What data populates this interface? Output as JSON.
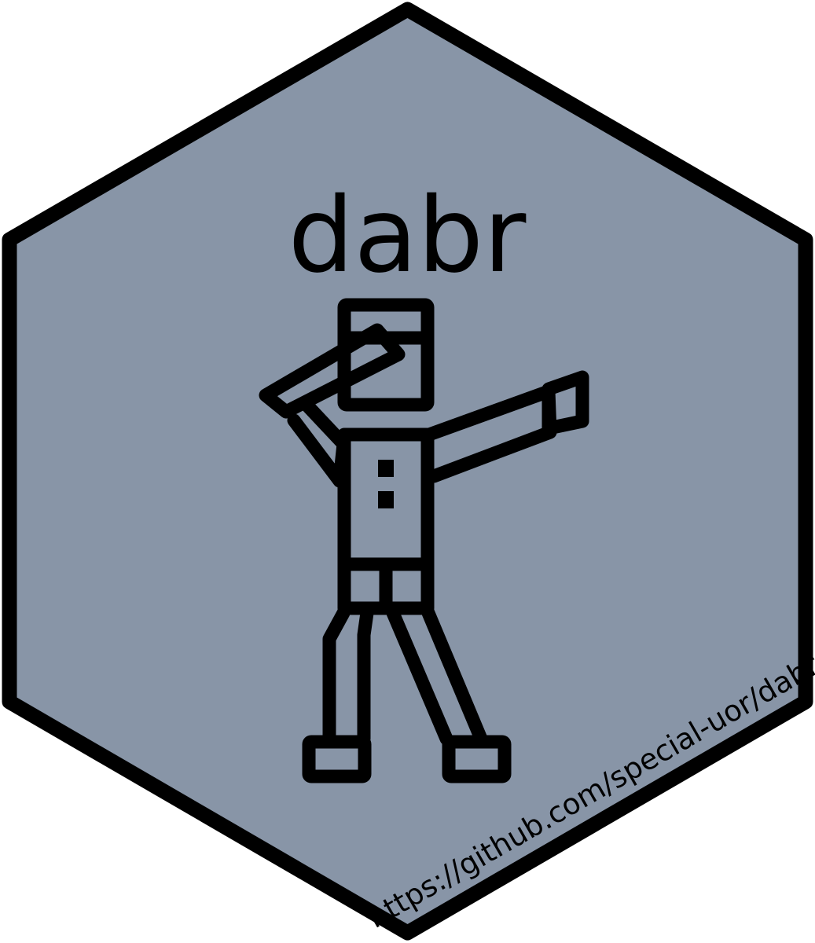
{
  "sticker": {
    "title": "dabr",
    "url": "https://github.com/special-uor/dabr",
    "figure_icon": "dabbing-figure-icon",
    "colors": {
      "fill": "#8895a7",
      "border": "#000000",
      "figure": "#000000",
      "text": "#000000"
    }
  }
}
